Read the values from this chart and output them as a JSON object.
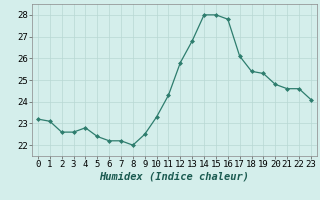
{
  "x": [
    0,
    1,
    2,
    3,
    4,
    5,
    6,
    7,
    8,
    9,
    10,
    11,
    12,
    13,
    14,
    15,
    16,
    17,
    18,
    19,
    20,
    21,
    22,
    23
  ],
  "y": [
    23.2,
    23.1,
    22.6,
    22.6,
    22.8,
    22.4,
    22.2,
    22.2,
    22.0,
    22.5,
    23.3,
    24.3,
    25.8,
    26.8,
    28.0,
    28.0,
    27.8,
    26.1,
    25.4,
    25.3,
    24.8,
    24.6,
    24.6,
    24.1
  ],
  "xlabel": "Humidex (Indice chaleur)",
  "ylim": [
    21.5,
    28.5
  ],
  "xlim": [
    -0.5,
    23.5
  ],
  "yticks": [
    22,
    23,
    24,
    25,
    26,
    27,
    28
  ],
  "xticks": [
    0,
    1,
    2,
    3,
    4,
    5,
    6,
    7,
    8,
    9,
    10,
    11,
    12,
    13,
    14,
    15,
    16,
    17,
    18,
    19,
    20,
    21,
    22,
    23
  ],
  "line_color": "#2e7d6e",
  "marker": "D",
  "marker_size": 2.0,
  "bg_color": "#d4eeeb",
  "grid_color": "#b8d8d4",
  "xlabel_fontsize": 7.5,
  "tick_fontsize": 6.5,
  "linewidth": 0.9
}
